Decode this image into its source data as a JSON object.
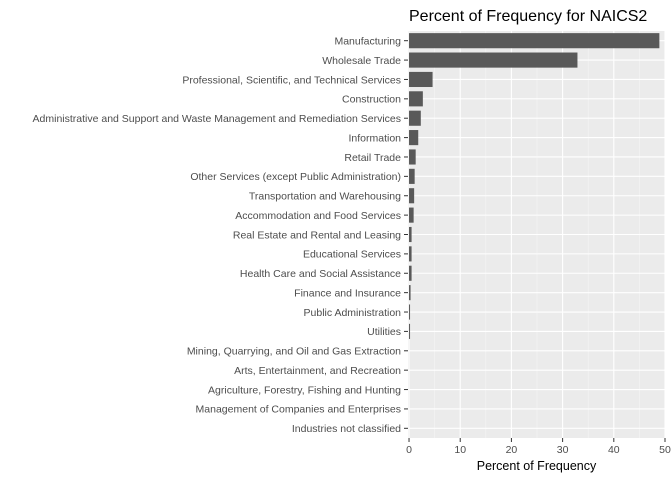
{
  "chart_data": {
    "type": "bar",
    "orientation": "horizontal",
    "title": "Percent of Frequency for NAICS2",
    "xlabel": "Percent of Frequency",
    "ylabel": "",
    "xlim": [
      -0.2,
      50
    ],
    "xticks": [
      0,
      10,
      20,
      30,
      40,
      50
    ],
    "grid": true,
    "categories": [
      "Manufacturing",
      "Wholesale Trade",
      "Professional, Scientific, and Technical Services",
      "Construction",
      "Administrative and Support and Waste Management and Remediation Services",
      "Information",
      "Retail Trade",
      "Other Services (except Public Administration)",
      "Transportation and Warehousing",
      "Accommodation and Food Services",
      "Real Estate and Rental and Leasing",
      "Educational Services",
      "Health Care and Social Assistance",
      "Finance and Insurance",
      "Public Administration",
      "Utilities",
      "Mining, Quarrying, and Oil and Gas Extraction",
      "Arts, Entertainment, and Recreation",
      "Agriculture, Forestry, Fishing and Hunting",
      "Management of Companies and Enterprises",
      "Industries not classified"
    ],
    "values": [
      48.9,
      32.9,
      4.6,
      2.7,
      2.3,
      1.8,
      1.3,
      1.1,
      1.0,
      0.9,
      0.5,
      0.5,
      0.5,
      0.3,
      0.2,
      0.2,
      0.0,
      0.0,
      0.0,
      0.0,
      0.0
    ],
    "colors": {
      "bar": "#595959",
      "panel": "#ebebeb",
      "grid_major": "#ffffff",
      "grid_minor": "#f5f5f5",
      "tick": "#333333"
    }
  }
}
